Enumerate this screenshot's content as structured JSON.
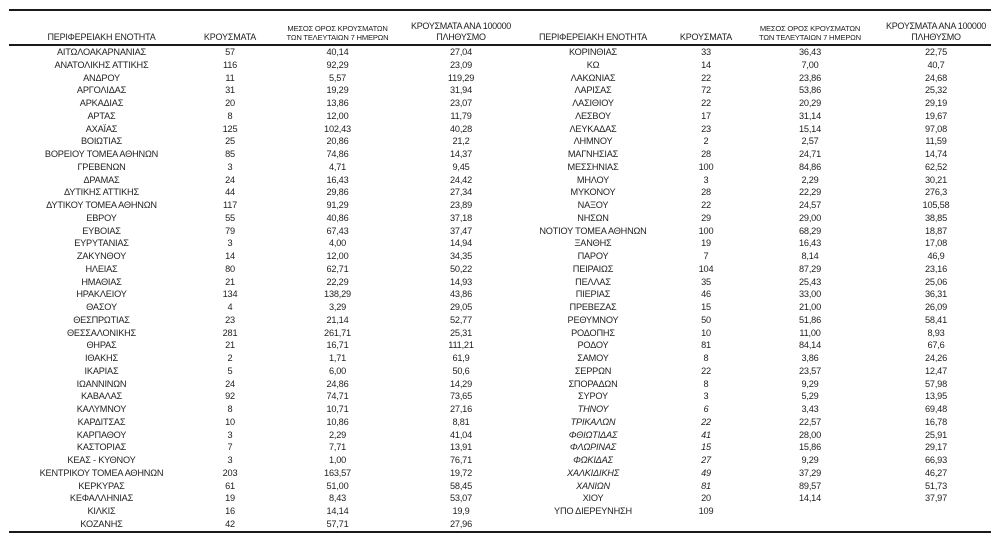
{
  "colors": {
    "text": "#1f1f1f",
    "rule": "#1a1a1a",
    "background": "#ffffff"
  },
  "table": {
    "headers": {
      "region": "ΠΕΡΙΦΕΡΕΙΑΚΗ ΕΝΟΤΗΤΑ",
      "cases": "ΚΡΟΥΣΜΑΤΑ",
      "avg7_line1": "ΜΕΣΟΣ ΟΡΟΣ ΚΡΟΥΣΜΑΤΩΝ",
      "avg7_line2": "ΤΩΝ ΤΕΛΕΥΤΑΙΩΝ 7 ΗΜΕΡΩΝ",
      "per100k_line1": "ΚΡΟΥΣΜΑΤΑ ΑΝΑ 100000",
      "per100k_line2": "ΠΛΗΘΥΣΜΟ"
    },
    "left_rows": [
      [
        "ΑΙΤΩΛΟΑΚΑΡΝΑΝΙΑΣ",
        "57",
        "40,14",
        "27,04"
      ],
      [
        "ΑΝΑΤΟΛΙΚΗΣ ΑΤΤΙΚΗΣ",
        "116",
        "92,29",
        "23,09"
      ],
      [
        "ΑΝΔΡΟΥ",
        "11",
        "5,57",
        "119,29"
      ],
      [
        "ΑΡΓΟΛΙΔΑΣ",
        "31",
        "19,29",
        "31,94"
      ],
      [
        "ΑΡΚΑΔΙΑΣ",
        "20",
        "13,86",
        "23,07"
      ],
      [
        "ΑΡΤΑΣ",
        "8",
        "12,00",
        "11,79"
      ],
      [
        "ΑΧΑΪΑΣ",
        "125",
        "102,43",
        "40,28"
      ],
      [
        "ΒΟΙΩΤΙΑΣ",
        "25",
        "20,86",
        "21,2"
      ],
      [
        "ΒΟΡΕΙΟΥ ΤΟΜΕΑ ΑΘΗΝΩΝ",
        "85",
        "74,86",
        "14,37"
      ],
      [
        "ΓΡΕΒΕΝΩΝ",
        "3",
        "4,71",
        "9,45"
      ],
      [
        "ΔΡΑΜΑΣ",
        "24",
        "16,43",
        "24,42"
      ],
      [
        "ΔΥΤΙΚΗΣ ΑΤΤΙΚΗΣ",
        "44",
        "29,86",
        "27,34"
      ],
      [
        "ΔΥΤΙΚΟΥ ΤΟΜΕΑ ΑΘΗΝΩΝ",
        "117",
        "91,29",
        "23,89"
      ],
      [
        "ΕΒΡΟΥ",
        "55",
        "40,86",
        "37,18"
      ],
      [
        "ΕΥΒΟΙΑΣ",
        "79",
        "67,43",
        "37,47"
      ],
      [
        "ΕΥΡΥΤΑΝΙΑΣ",
        "3",
        "4,00",
        "14,94"
      ],
      [
        "ΖΑΚΥΝΘΟΥ",
        "14",
        "12,00",
        "34,35"
      ],
      [
        "ΗΛΕΙΑΣ",
        "80",
        "62,71",
        "50,22"
      ],
      [
        "ΗΜΑΘΙΑΣ",
        "21",
        "22,29",
        "14,93"
      ],
      [
        "ΗΡΑΚΛΕΙΟΥ",
        "134",
        "138,29",
        "43,86"
      ],
      [
        "ΘΑΣΟΥ",
        "4",
        "3,29",
        "29,05"
      ],
      [
        "ΘΕΣΠΡΩΤΙΑΣ",
        "23",
        "21,14",
        "52,77"
      ],
      [
        "ΘΕΣΣΑΛΟΝΙΚΗΣ",
        "281",
        "261,71",
        "25,31"
      ],
      [
        "ΘΗΡΑΣ",
        "21",
        "16,71",
        "111,21"
      ],
      [
        "ΙΘΑΚΗΣ",
        "2",
        "1,71",
        "61,9"
      ],
      [
        "ΙΚΑΡΙΑΣ",
        "5",
        "6,00",
        "50,6"
      ],
      [
        "ΙΩΑΝΝΙΝΩΝ",
        "24",
        "24,86",
        "14,29"
      ],
      [
        "ΚΑΒΑΛΑΣ",
        "92",
        "74,71",
        "73,65"
      ],
      [
        "ΚΑΛΥΜΝΟΥ",
        "8",
        "10,71",
        "27,16"
      ],
      [
        "ΚΑΡΔΙΤΣΑΣ",
        "10",
        "10,86",
        "8,81"
      ],
      [
        "ΚΑΡΠΑΘΟΥ",
        "3",
        "2,29",
        "41,04"
      ],
      [
        "ΚΑΣΤΟΡΙΑΣ",
        "7",
        "7,71",
        "13,91"
      ],
      [
        "ΚΕΑΣ - ΚΥΘΝΟΥ",
        "3",
        "1,00",
        "76,71"
      ],
      [
        "ΚΕΝΤΡΙΚΟΥ ΤΟΜΕΑ ΑΘΗΝΩΝ",
        "203",
        "163,57",
        "19,72"
      ],
      [
        "ΚΕΡΚΥΡΑΣ",
        "61",
        "51,00",
        "58,45"
      ],
      [
        "ΚΕΦΑΛΛΗΝΙΑΣ",
        "19",
        "8,43",
        "53,07"
      ],
      [
        "ΚΙΛΚΙΣ",
        "16",
        "14,14",
        "19,9"
      ],
      [
        "ΚΟΖΑΝΗΣ",
        "42",
        "57,71",
        "27,96"
      ]
    ],
    "right_rows": [
      [
        "ΚΟΡΙΝΘΙΑΣ",
        "33",
        "36,43",
        "22,75"
      ],
      [
        "ΚΩ",
        "14",
        "7,00",
        "40,7"
      ],
      [
        "ΛΑΚΩΝΙΑΣ",
        "22",
        "23,86",
        "24,68"
      ],
      [
        "ΛΑΡΙΣΑΣ",
        "72",
        "53,86",
        "25,32"
      ],
      [
        "ΛΑΣΙΘΙΟΥ",
        "22",
        "20,29",
        "29,19"
      ],
      [
        "ΛΕΣΒΟΥ",
        "17",
        "31,14",
        "19,67"
      ],
      [
        "ΛΕΥΚΑΔΑΣ",
        "23",
        "15,14",
        "97,08"
      ],
      [
        "ΛΗΜΝΟΥ",
        "2",
        "2,57",
        "11,59"
      ],
      [
        "ΜΑΓΝΗΣΙΑΣ",
        "28",
        "24,71",
        "14,74"
      ],
      [
        "ΜΕΣΣΗΝΙΑΣ",
        "100",
        "84,86",
        "62,52"
      ],
      [
        "ΜΗΛΟΥ",
        "3",
        "2,29",
        "30,21"
      ],
      [
        "ΜΥΚΟΝΟΥ",
        "28",
        "22,29",
        "276,3"
      ],
      [
        "ΝΑΞΟΥ",
        "22",
        "24,57",
        "105,58"
      ],
      [
        "ΝΗΣΩΝ",
        "29",
        "29,00",
        "38,85"
      ],
      [
        "ΝΟΤΙΟΥ ΤΟΜΕΑ ΑΘΗΝΩΝ",
        "100",
        "68,29",
        "18,87"
      ],
      [
        "ΞΑΝΘΗΣ",
        "19",
        "16,43",
        "17,08"
      ],
      [
        "ΠΑΡΟΥ",
        "7",
        "8,14",
        "46,9"
      ],
      [
        "ΠΕΙΡΑΙΩΣ",
        "104",
        "87,29",
        "23,16"
      ],
      [
        "ΠΕΛΛΑΣ",
        "35",
        "25,43",
        "25,06"
      ],
      [
        "ΠΙΕΡΙΑΣ",
        "46",
        "33,00",
        "36,31"
      ],
      [
        "ΠΡΕΒΕΖΑΣ",
        "15",
        "21,00",
        "26,09"
      ],
      [
        "ΡΕΘΥΜΝΟΥ",
        "50",
        "51,86",
        "58,41"
      ],
      [
        "ΡΟΔΟΠΗΣ",
        "10",
        "11,00",
        "8,93"
      ],
      [
        "ΡΟΔΟΥ",
        "81",
        "84,14",
        "67,6"
      ],
      [
        "ΣΑΜΟΥ",
        "8",
        "3,86",
        "24,26"
      ],
      [
        "ΣΕΡΡΩΝ",
        "22",
        "23,57",
        "12,47"
      ],
      [
        "ΣΠΟΡΑΔΩΝ",
        "8",
        "9,29",
        "57,98"
      ],
      [
        "ΣΥΡΟΥ",
        "3",
        "5,29",
        "13,95"
      ],
      [
        "ΤΗΝΟΥ",
        "6",
        "3,43",
        "69,48"
      ],
      [
        "ΤΡΙΚΑΛΩΝ",
        "22",
        "22,57",
        "16,78"
      ],
      [
        "ΦΘΙΩΤΙΔΑΣ",
        "41",
        "28,00",
        "25,91"
      ],
      [
        "ΦΛΩΡΙΝΑΣ",
        "15",
        "15,86",
        "29,17"
      ],
      [
        "ΦΩΚΙΔΑΣ",
        "27",
        "9,29",
        "66,93"
      ],
      [
        "ΧΑΛΚΙΔΙΚΗΣ",
        "49",
        "37,29",
        "46,27"
      ],
      [
        "ΧΑΝΙΩΝ",
        "81",
        "89,57",
        "51,73"
      ],
      [
        "ΧΙΟΥ",
        "20",
        "14,14",
        "37,97"
      ],
      [
        "ΥΠΟ ΔΙΕΡΕΥΝΗΣΗ",
        "109",
        "",
        ""
      ]
    ],
    "right_italic_indices": [
      28,
      29,
      30,
      31,
      32,
      33,
      34
    ]
  }
}
